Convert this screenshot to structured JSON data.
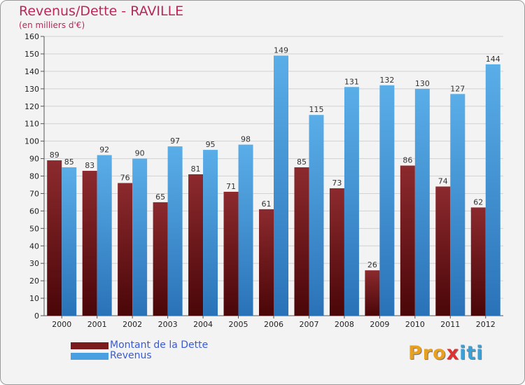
{
  "title": "Revenus/Dette - RAVILLE",
  "subtitle": "(en milliers d'€)",
  "colors": {
    "dette": "#7a1b1e",
    "revenus": "#4a9fe0",
    "title": "#b8285a",
    "legend_text": "#3a5bd0"
  },
  "chart_data": {
    "type": "bar",
    "title": "Revenus/Dette - RAVILLE",
    "ylabel": "(en milliers d'€)",
    "xlabel": "",
    "categories": [
      "2000",
      "2001",
      "2002",
      "2003",
      "2004",
      "2005",
      "2006",
      "2007",
      "2008",
      "2009",
      "2010",
      "2011",
      "2012"
    ],
    "series": [
      {
        "name": "Montant de la Dette",
        "values": [
          89,
          83,
          76,
          65,
          81,
          71,
          61,
          85,
          73,
          26,
          86,
          74,
          62
        ]
      },
      {
        "name": "Revenus",
        "values": [
          85,
          92,
          90,
          97,
          95,
          98,
          149,
          115,
          131,
          132,
          130,
          127,
          144
        ]
      }
    ],
    "ylim": [
      0,
      160
    ],
    "yticks": [
      0,
      10,
      20,
      30,
      40,
      50,
      60,
      70,
      80,
      90,
      100,
      110,
      120,
      130,
      140,
      150,
      160
    ],
    "grid": true,
    "legend_position": "bottom-left"
  },
  "legend": {
    "items": [
      {
        "label": "Montant de la Dette",
        "color": "#7a1b1e"
      },
      {
        "label": "Revenus",
        "color": "#4a9fe0"
      }
    ]
  },
  "logo": {
    "text": "Proxiti",
    "letter_colors": [
      "#e8a020",
      "#e8a020",
      "#e8a020",
      "#e03030",
      "#3aa0d8",
      "#3aa0d8",
      "#3aa0d8"
    ]
  }
}
